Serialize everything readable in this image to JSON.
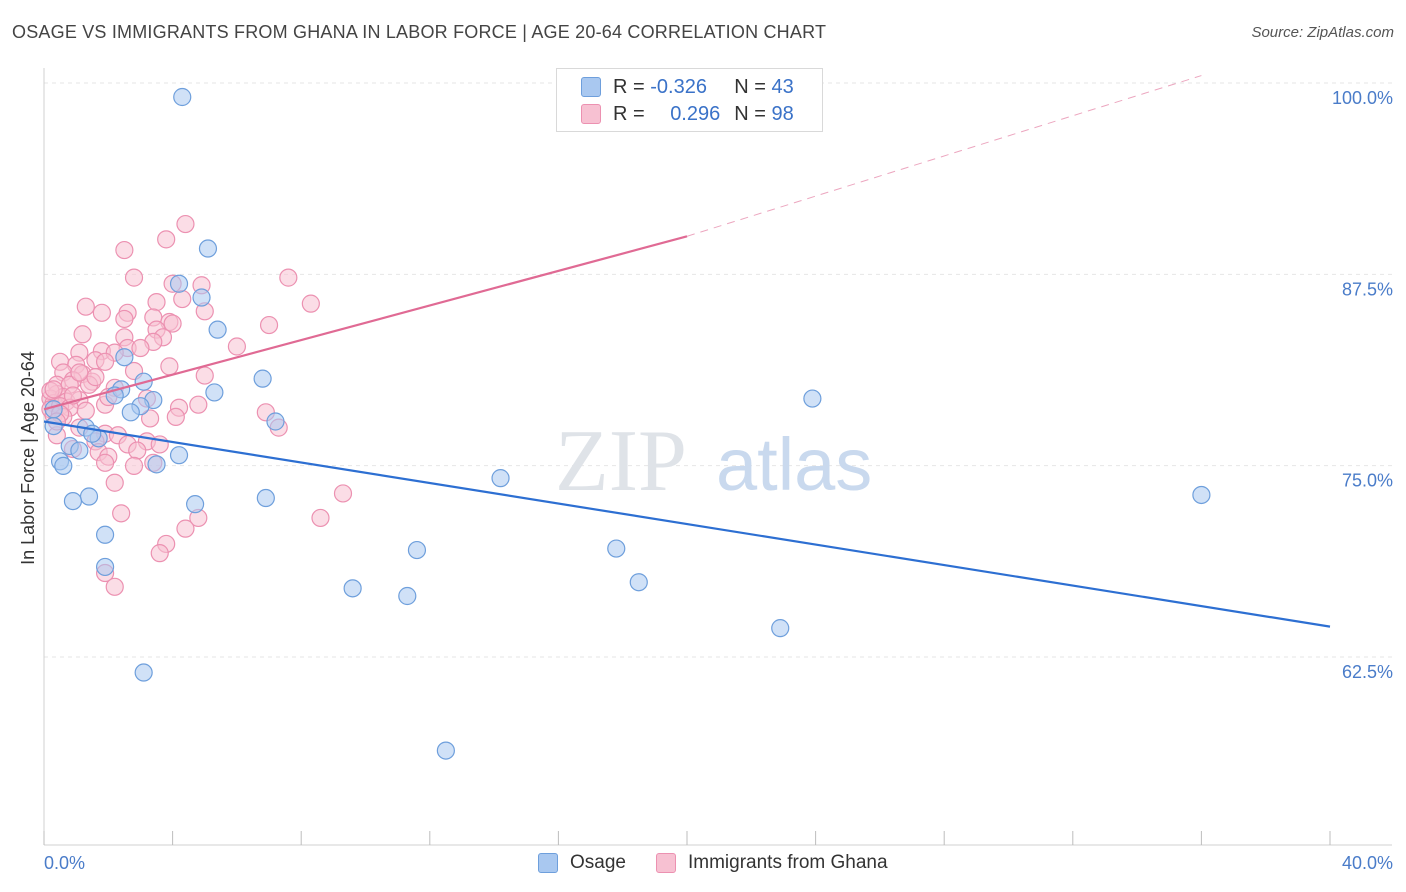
{
  "title": "OSAGE VS IMMIGRANTS FROM GHANA IN LABOR FORCE | AGE 20-64 CORRELATION CHART",
  "source": "Source: ZipAtlas.com",
  "watermark": {
    "zip": "ZIP",
    "atlas": "atlas"
  },
  "legend": {
    "rows": [
      {
        "r_label": "R = ",
        "r_value": "-0.326",
        "n_label": "N = ",
        "n_value": "43"
      },
      {
        "r_label": "R = ",
        "r_value": "0.296",
        "n_label": "N = ",
        "n_value": "98"
      }
    ]
  },
  "bottom_legend": [
    {
      "label": "Osage"
    },
    {
      "label": "Immigrants from Ghana"
    }
  ],
  "colors": {
    "osage_fill": "#a9c8f0",
    "osage_stroke": "#6e9fdc",
    "osage_line": "#2d6fd2",
    "ghana_fill": "#f7c1d2",
    "ghana_stroke": "#ec91b1",
    "ghana_line": "#e06a94",
    "grid": "#e6e6e6",
    "tick_text": "#4a7cc9"
  },
  "chart_data": {
    "type": "scatter",
    "title": "OSAGE VS IMMIGRANTS FROM GHANA IN LABOR FORCE | AGE 20-64 CORRELATION CHART",
    "xlabel": "",
    "ylabel": "In Labor Force | Age 20-64",
    "xlim": [
      0,
      40
    ],
    "ylim": [
      52,
      101.5
    ],
    "x_tick_labels": [
      "0.0%",
      "40.0%"
    ],
    "y_ticks": [
      62.5,
      75.0,
      87.5,
      100.0
    ],
    "y_tick_labels": [
      "62.5%",
      "75.0%",
      "87.5%",
      "100.0%"
    ],
    "series": [
      {
        "name": "Osage",
        "r": -0.326,
        "n": 43,
        "trend": {
          "x0": 0.0,
          "y0": 78.8,
          "x1": 40.0,
          "y1": 65.4
        },
        "points": [
          [
            4.3,
            100.0
          ],
          [
            5.1,
            90.1
          ],
          [
            4.9,
            86.9
          ],
          [
            4.2,
            87.8
          ],
          [
            5.4,
            84.8
          ],
          [
            2.5,
            83.0
          ],
          [
            3.1,
            81.4
          ],
          [
            6.8,
            81.6
          ],
          [
            2.4,
            80.9
          ],
          [
            3.4,
            80.2
          ],
          [
            5.3,
            80.7
          ],
          [
            3.0,
            79.8
          ],
          [
            2.7,
            79.4
          ],
          [
            7.2,
            78.8
          ],
          [
            0.3,
            78.5
          ],
          [
            1.3,
            78.4
          ],
          [
            1.7,
            77.7
          ],
          [
            0.8,
            77.2
          ],
          [
            1.1,
            76.9
          ],
          [
            4.2,
            76.6
          ],
          [
            0.5,
            76.2
          ],
          [
            0.6,
            75.9
          ],
          [
            3.5,
            76.0
          ],
          [
            14.2,
            75.1
          ],
          [
            1.4,
            73.9
          ],
          [
            0.9,
            73.6
          ],
          [
            4.7,
            73.4
          ],
          [
            6.9,
            73.8
          ],
          [
            36.0,
            74.0
          ],
          [
            1.9,
            71.4
          ],
          [
            11.6,
            70.4
          ],
          [
            17.8,
            70.5
          ],
          [
            1.9,
            69.3
          ],
          [
            9.6,
            67.9
          ],
          [
            18.5,
            68.3
          ],
          [
            11.3,
            67.4
          ],
          [
            22.9,
            65.3
          ],
          [
            23.9,
            80.3
          ],
          [
            3.1,
            62.4
          ],
          [
            12.5,
            57.3
          ],
          [
            0.3,
            79.6
          ],
          [
            1.5,
            78.0
          ],
          [
            2.2,
            80.5
          ]
        ]
      },
      {
        "name": "Immigrants from Ghana",
        "r": 0.296,
        "n": 98,
        "trend": {
          "x0": 0.0,
          "y0": 79.6,
          "x1": 20.0,
          "y1": 90.9
        },
        "trend_dashed": {
          "x0": 20.0,
          "y0": 90.9,
          "x1": 36.0,
          "y1": 101.4
        },
        "points": [
          [
            4.4,
            91.7
          ],
          [
            3.8,
            90.7
          ],
          [
            2.5,
            90.0
          ],
          [
            2.8,
            88.2
          ],
          [
            4.0,
            87.8
          ],
          [
            7.6,
            88.2
          ],
          [
            4.9,
            87.7
          ],
          [
            1.3,
            86.3
          ],
          [
            3.5,
            86.6
          ],
          [
            4.3,
            86.8
          ],
          [
            8.3,
            86.5
          ],
          [
            1.8,
            85.9
          ],
          [
            2.6,
            85.9
          ],
          [
            5.0,
            86.0
          ],
          [
            2.5,
            85.5
          ],
          [
            3.4,
            85.6
          ],
          [
            3.9,
            85.3
          ],
          [
            4.0,
            85.2
          ],
          [
            7.0,
            85.1
          ],
          [
            3.5,
            84.8
          ],
          [
            1.2,
            84.5
          ],
          [
            2.5,
            84.3
          ],
          [
            3.7,
            84.3
          ],
          [
            3.4,
            84.0
          ],
          [
            6.0,
            83.7
          ],
          [
            2.6,
            83.6
          ],
          [
            1.1,
            83.3
          ],
          [
            1.8,
            83.4
          ],
          [
            2.2,
            83.3
          ],
          [
            0.5,
            82.7
          ],
          [
            1.6,
            82.8
          ],
          [
            1.0,
            82.5
          ],
          [
            1.9,
            82.7
          ],
          [
            3.9,
            82.4
          ],
          [
            0.6,
            82.0
          ],
          [
            1.2,
            81.9
          ],
          [
            0.9,
            81.5
          ],
          [
            1.5,
            81.4
          ],
          [
            5.0,
            81.8
          ],
          [
            0.4,
            81.2
          ],
          [
            0.8,
            81.2
          ],
          [
            1.4,
            81.2
          ],
          [
            2.2,
            81.0
          ],
          [
            0.4,
            80.6
          ],
          [
            0.2,
            80.3
          ],
          [
            0.6,
            80.4
          ],
          [
            0.3,
            80.0
          ],
          [
            0.7,
            80.1
          ],
          [
            1.1,
            80.2
          ],
          [
            1.9,
            79.9
          ],
          [
            0.2,
            79.6
          ],
          [
            0.5,
            79.8
          ],
          [
            0.8,
            79.7
          ],
          [
            3.2,
            80.3
          ],
          [
            4.2,
            79.7
          ],
          [
            4.8,
            79.9
          ],
          [
            6.9,
            79.4
          ],
          [
            0.3,
            79.2
          ],
          [
            0.6,
            79.1
          ],
          [
            3.3,
            79.0
          ],
          [
            4.1,
            79.1
          ],
          [
            7.3,
            78.4
          ],
          [
            1.1,
            78.4
          ],
          [
            1.9,
            78.0
          ],
          [
            2.3,
            77.9
          ],
          [
            0.4,
            77.9
          ],
          [
            1.6,
            77.5
          ],
          [
            2.6,
            77.3
          ],
          [
            3.2,
            77.5
          ],
          [
            3.6,
            77.3
          ],
          [
            0.9,
            77.0
          ],
          [
            1.7,
            76.8
          ],
          [
            2.0,
            76.5
          ],
          [
            2.9,
            76.9
          ],
          [
            1.9,
            76.1
          ],
          [
            2.8,
            75.9
          ],
          [
            3.4,
            76.1
          ],
          [
            2.2,
            74.8
          ],
          [
            9.3,
            74.1
          ],
          [
            2.4,
            72.8
          ],
          [
            8.6,
            72.5
          ],
          [
            4.8,
            72.5
          ],
          [
            4.4,
            71.8
          ],
          [
            3.8,
            70.8
          ],
          [
            3.6,
            70.2
          ],
          [
            1.9,
            68.9
          ],
          [
            2.2,
            68.0
          ],
          [
            0.2,
            80.8
          ],
          [
            0.5,
            79.3
          ],
          [
            0.9,
            80.5
          ],
          [
            1.3,
            79.5
          ],
          [
            1.6,
            81.7
          ],
          [
            0.3,
            80.9
          ],
          [
            2.0,
            80.4
          ],
          [
            0.4,
            78.8
          ],
          [
            2.8,
            82.1
          ],
          [
            3.0,
            83.6
          ],
          [
            1.1,
            82.0
          ]
        ]
      }
    ]
  }
}
